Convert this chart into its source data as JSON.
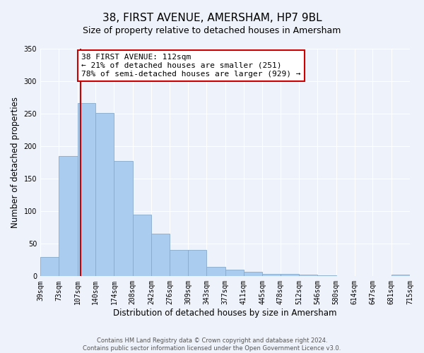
{
  "title": "38, FIRST AVENUE, AMERSHAM, HP7 9BL",
  "subtitle": "Size of property relative to detached houses in Amersham",
  "xlabel": "Distribution of detached houses by size in Amersham",
  "ylabel": "Number of detached properties",
  "bin_edges": [
    39,
    73,
    107,
    140,
    174,
    208,
    242,
    276,
    309,
    343,
    377,
    411,
    445,
    478,
    512,
    546,
    580,
    614,
    647,
    681,
    715
  ],
  "bar_heights": [
    30,
    185,
    266,
    251,
    177,
    95,
    65,
    40,
    40,
    14,
    10,
    7,
    4,
    4,
    2,
    1,
    0,
    0,
    0,
    2
  ],
  "bar_color": "#aaccee",
  "bar_edge_color": "#88aacc",
  "marker_value": 112,
  "marker_color": "#cc0000",
  "annotation_line1": "38 FIRST AVENUE: 112sqm",
  "annotation_line2": "← 21% of detached houses are smaller (251)",
  "annotation_line3": "78% of semi-detached houses are larger (929) →",
  "annotation_box_color": "#ffffff",
  "annotation_box_edge_color": "#cc0000",
  "ylim": [
    0,
    350
  ],
  "yticks": [
    0,
    50,
    100,
    150,
    200,
    250,
    300,
    350
  ],
  "tick_labels": [
    "39sqm",
    "73sqm",
    "107sqm",
    "140sqm",
    "174sqm",
    "208sqm",
    "242sqm",
    "276sqm",
    "309sqm",
    "343sqm",
    "377sqm",
    "411sqm",
    "445sqm",
    "478sqm",
    "512sqm",
    "546sqm",
    "580sqm",
    "614sqm",
    "647sqm",
    "681sqm",
    "715sqm"
  ],
  "footnote": "Contains HM Land Registry data © Crown copyright and database right 2024.\nContains public sector information licensed under the Open Government Licence v3.0.",
  "background_color": "#eef2fa",
  "grid_color": "#ffffff",
  "title_fontsize": 11,
  "subtitle_fontsize": 9,
  "axis_label_fontsize": 8.5,
  "tick_fontsize": 7,
  "annotation_fontsize": 8,
  "footnote_fontsize": 6
}
